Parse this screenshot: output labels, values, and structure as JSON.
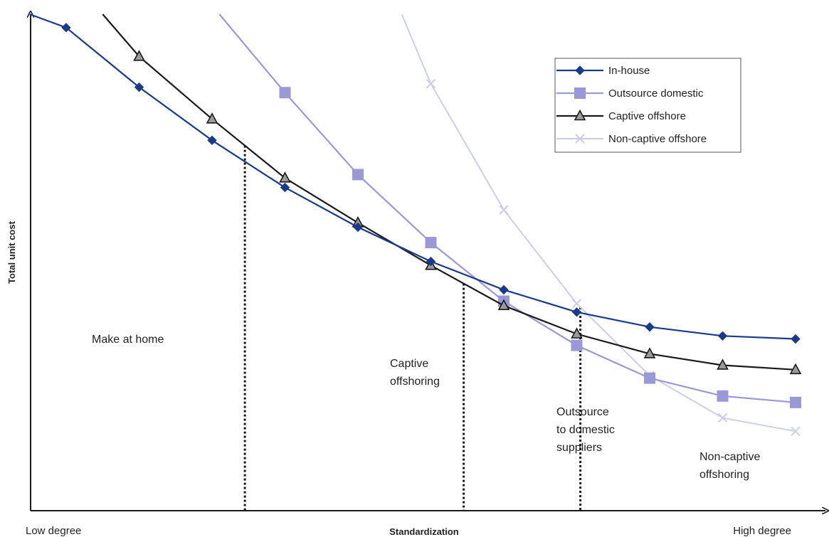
{
  "chart_data": {
    "type": "line",
    "title": "",
    "xlabel": "Standardization",
    "ylabel": "Total unit cost",
    "x_low_label": "Low degree",
    "x_high_label": "High degree",
    "x": [
      1,
      2,
      3,
      4,
      5,
      6,
      7,
      8,
      9,
      10,
      11
    ],
    "xlim": [
      0.5,
      11.5
    ],
    "ylim": [
      0,
      100
    ],
    "series": [
      {
        "name": "In-house",
        "color": "#1a3a8c",
        "marker": "diamond",
        "points": [
          [
            0.5,
            100
          ],
          [
            1,
            97.3
          ],
          [
            2,
            85.3
          ],
          [
            3,
            74.6
          ],
          [
            4,
            65.1
          ],
          [
            5,
            57.1
          ],
          [
            6,
            50.2
          ],
          [
            7,
            44.5
          ],
          [
            8,
            40.0
          ],
          [
            9,
            37.0
          ],
          [
            10,
            35.2
          ],
          [
            11,
            34.6
          ]
        ]
      },
      {
        "name": "Outsource domestic",
        "color": "#9a98d6",
        "marker": "square",
        "points": [
          [
            3.1,
            100
          ],
          [
            4,
            84.2
          ],
          [
            5,
            67.7
          ],
          [
            6,
            54.0
          ],
          [
            7,
            42.2
          ],
          [
            8,
            33.3
          ],
          [
            9,
            26.7
          ],
          [
            10,
            23.1
          ],
          [
            11,
            21.8
          ]
        ]
      },
      {
        "name": "Captive offshore",
        "color": "#1a1a1a",
        "marker": "triangle",
        "points": [
          [
            1.5,
            100
          ],
          [
            2,
            91.5
          ],
          [
            3,
            78.9
          ],
          [
            4,
            67.0
          ],
          [
            5,
            58.0
          ],
          [
            6,
            49.4
          ],
          [
            7,
            41.3
          ],
          [
            8,
            35.6
          ],
          [
            9,
            31.6
          ],
          [
            10,
            29.3
          ],
          [
            11,
            28.4
          ]
        ]
      },
      {
        "name": "Non-captive offshore",
        "color": "#cccde8",
        "marker": "x",
        "points": [
          [
            5.6,
            100
          ],
          [
            6,
            86.0
          ],
          [
            7,
            60.6
          ],
          [
            8,
            41.7
          ],
          [
            9,
            27.2
          ],
          [
            10,
            18.7
          ],
          [
            11,
            16.0
          ]
        ]
      }
    ],
    "region_boundaries": [
      3.45,
      6.45,
      8.05
    ],
    "legend_position": "top-right",
    "grid": false
  },
  "regions": {
    "make_at_home": [
      "Make at home"
    ],
    "captive_offshoring": [
      "Captive",
      "offshoring"
    ],
    "outsource_domestic": [
      "Outsource",
      "to domestic",
      "suppliers"
    ],
    "non_captive_offshoring": [
      "Non-captive",
      "offshoring"
    ]
  }
}
